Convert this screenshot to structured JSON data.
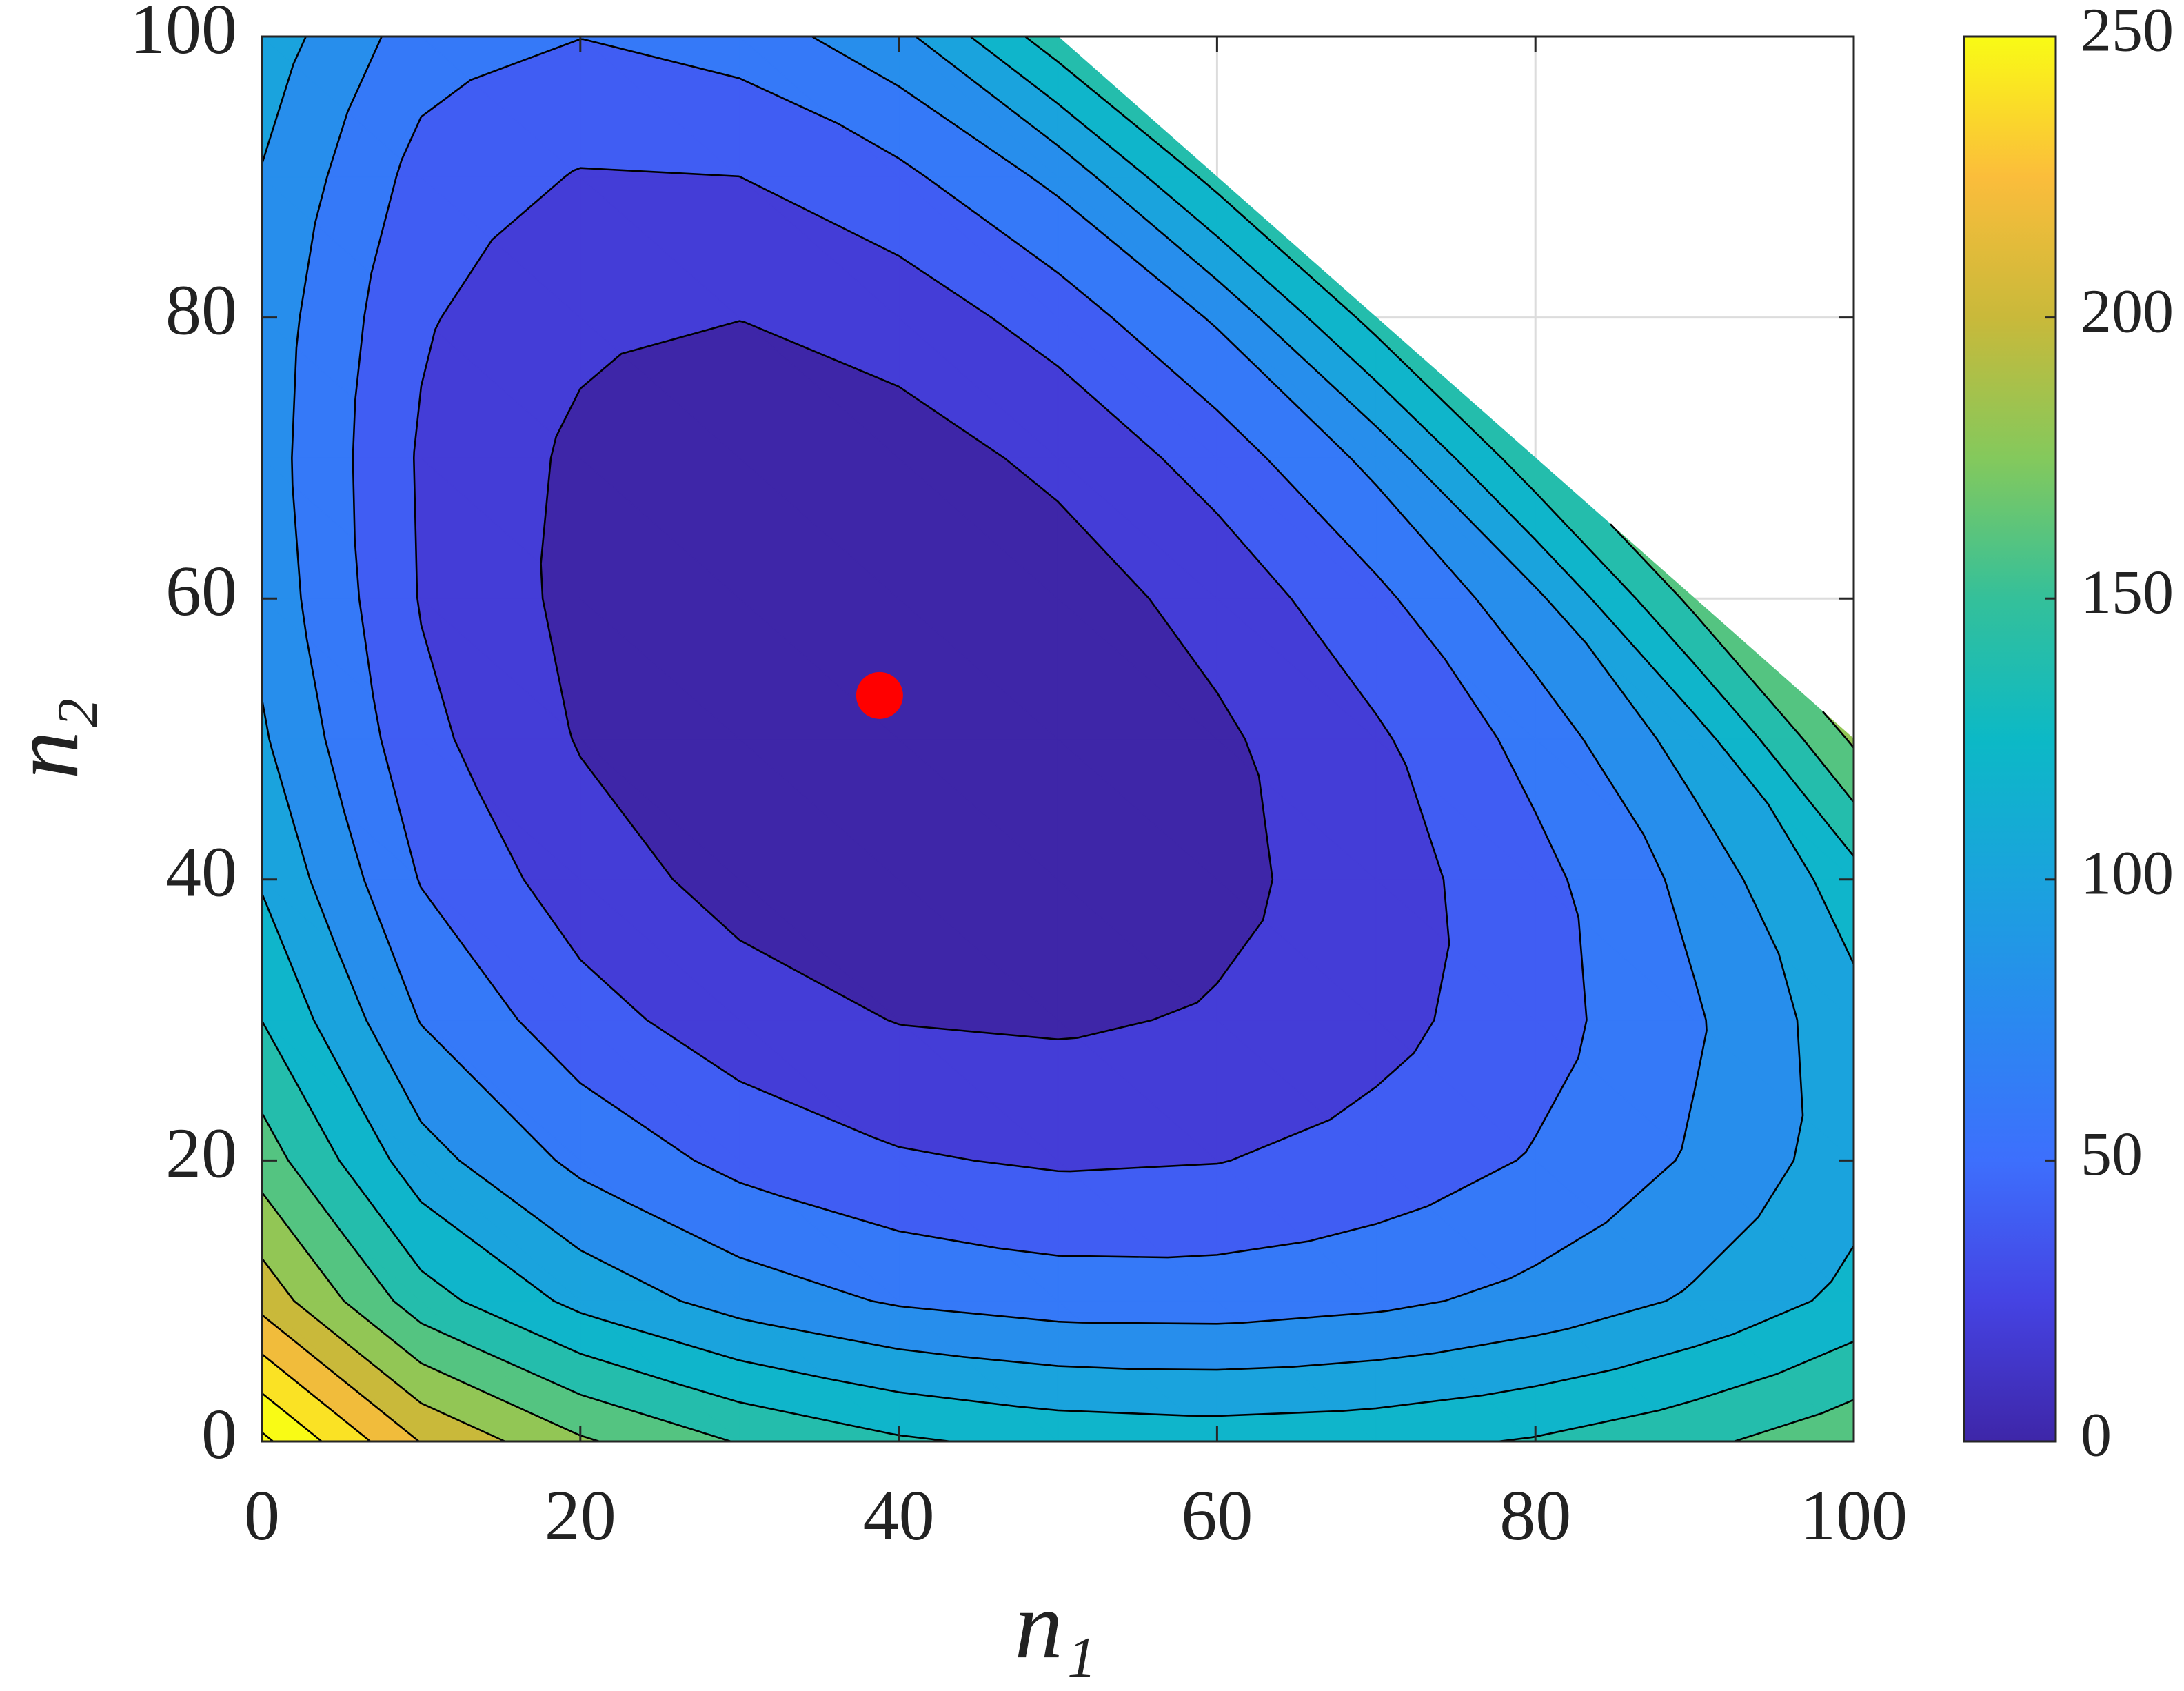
{
  "chart_data": {
    "type": "contour",
    "xlabel": "n₁",
    "ylabel": "n₂",
    "x": [
      0,
      10,
      20,
      30,
      40,
      50,
      60,
      70,
      80,
      90,
      100
    ],
    "y": [
      0,
      10,
      20,
      30,
      40,
      50,
      60,
      70,
      80,
      90,
      100
    ],
    "z": [
      [
        284.6,
        219.1,
        182.9,
        158.7,
        142.9,
        134.0,
        131.1,
        133.8,
        141.9,
        155.3,
        174.3
      ],
      [
        212.9,
        148.9,
        114.2,
        91.6,
        77.6,
        70.7,
        70.1,
        75.3,
        86.2,
        103.0,
        126.1
      ],
      [
        170.3,
        107.9,
        74.9,
        54.1,
        42.2,
        37.5,
        39.3,
        47.4,
        61.7,
        82.5,
        110.6
      ],
      [
        139.8,
        79.0,
        47.8,
        29.1,
        19.3,
        17.2,
        21.9,
        33.3,
        51.7,
        77.5,
        112.4
      ],
      [
        117.8,
        58.8,
        29.6,
        13.1,
        5.9,
        6.6,
        14.6,
        30.1,
        53.5,
        86.1,
        131.5
      ],
      [
        102.6,
        45.6,
        18.6,
        4.6,
        0.3,
        4.3,
        16.4,
        36.9,
        67.1,
        110.2,
        183.3
      ],
      [
        93.4,
        38.7,
        14.2,
        3.1,
        2.1,
        10.2,
        27.3,
        54.6,
        95.2,
        166.1,
        null
      ],
      [
        89.8,
        37.6,
        16.0,
        8.2,
        11.3,
        24.4,
        48.3,
        86.1,
        154.5,
        null,
        null
      ],
      [
        91.7,
        42.3,
        24.1,
        20.3,
        28.4,
        48.3,
        82.7,
        148.2,
        null,
        null,
        null
      ],
      [
        98.8,
        52.8,
        38.6,
        39.9,
        54.8,
        85.1,
        147.3,
        null,
        null,
        null,
        null
      ],
      [
        111.6,
        69.6,
        60.4,
        68.5,
        93.8,
        152.0,
        null,
        null,
        null,
        null,
        null
      ]
    ],
    "levels": [
      20,
      40,
      60,
      80,
      100,
      120,
      140,
      160,
      180,
      200,
      220,
      240,
      260,
      280
    ],
    "colormap": [
      "#3e26a8",
      "#4543e3",
      "#3d6ffd",
      "#2a89f0",
      "#1aa3dd",
      "#0cb9c6",
      "#34c09a",
      "#84c95c",
      "#c9b93a",
      "#fbbd3b",
      "#f9fb15"
    ],
    "clim": [
      0,
      250
    ],
    "cticks": [
      0,
      50,
      100,
      150,
      200,
      250
    ],
    "xlim": [
      0,
      100
    ],
    "ylim": [
      0,
      100
    ],
    "xticks": [
      0,
      20,
      40,
      60,
      80,
      100
    ],
    "yticks": [
      0,
      20,
      40,
      60,
      80,
      100
    ],
    "grid": true,
    "point": {
      "x": 38.8,
      "y": 53.1,
      "color": "#ff0000"
    }
  }
}
